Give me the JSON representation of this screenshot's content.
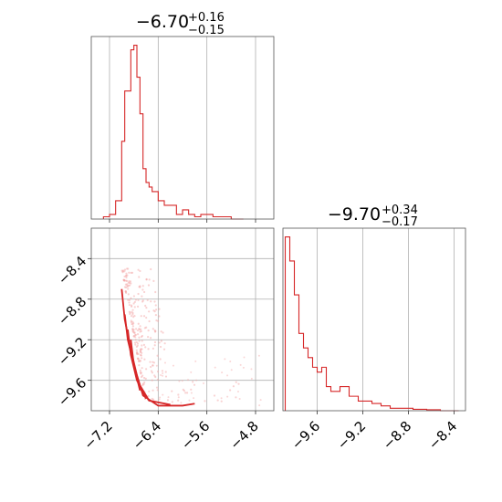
{
  "colors": {
    "series": "#d62728",
    "scatter": "#f4a6a6",
    "frame": "#555555",
    "grid": "#b0b0b0"
  },
  "chart_data": [
    {
      "panel": "marginal-param1",
      "type": "histogram",
      "title_main": "−6.70",
      "title_plus": "+0.16",
      "title_minus": "−0.15",
      "x_range": [
        -7.5,
        -4.5
      ],
      "bins_x": [
        -7.3,
        -7.2,
        -7.1,
        -7.05,
        -7.0,
        -6.95,
        -6.9,
        -6.85,
        -6.8,
        -6.75,
        -6.7,
        -6.65,
        -6.6,
        -6.55,
        -6.5,
        -6.4,
        -6.3,
        -6.2,
        -6.1,
        -6.0,
        -5.9,
        -5.8,
        -5.7,
        -5.6,
        -5.5,
        -5.4,
        -5.3,
        -5.2,
        -5.1,
        -5.0
      ],
      "counts": [
        0.5,
        1,
        4,
        4,
        17,
        28,
        28,
        37,
        38,
        31,
        23,
        11,
        8,
        7,
        6,
        4,
        3,
        3,
        1,
        2,
        1,
        0.5,
        1,
        1,
        0.5,
        0.5,
        0.5,
        0,
        0
      ]
    },
    {
      "panel": "marginal-param2",
      "type": "histogram",
      "title_main": "−9.70",
      "title_plus": "+0.34",
      "title_minus": "−0.17",
      "x_range": [
        -9.9,
        -8.3
      ],
      "x_ticks": [
        -9.6,
        -9.2,
        -8.8,
        -8.4
      ],
      "x_tick_labels": [
        "−9.6",
        "−9.2",
        "−8.8",
        "−8.4"
      ],
      "bins_x": [
        -9.88,
        -9.84,
        -9.8,
        -9.76,
        -9.72,
        -9.68,
        -9.64,
        -9.6,
        -9.56,
        -9.52,
        -9.48,
        -9.44,
        -9.4,
        -9.36,
        -9.32,
        -9.28,
        -9.24,
        -9.2,
        -9.16,
        -9.12,
        -9.08,
        -9.04,
        -9.0,
        -8.96,
        -8.92,
        -8.88,
        -8.84,
        -8.8,
        -8.76,
        -8.72,
        -8.68,
        -8.64,
        -8.6,
        -8.56,
        -8.52,
        -8.48,
        -8.44,
        -8.4,
        -8.36
      ],
      "counts": [
        36,
        31,
        24,
        16,
        13,
        11,
        9,
        8,
        9,
        5,
        4,
        4,
        5,
        5,
        3,
        3,
        2,
        2,
        2,
        1.5,
        1.5,
        1,
        1,
        0.5,
        0.5,
        0.5,
        0.5,
        0.5,
        0.3,
        0.3,
        0.3,
        0.2,
        0.2,
        0.2,
        0,
        0,
        0,
        0
      ]
    },
    {
      "panel": "joint-param1-param2",
      "type": "scatter-contour",
      "x_range": [
        -7.5,
        -4.5
      ],
      "y_range": [
        -9.9,
        -8.1
      ],
      "x_ticks": [
        -7.2,
        -6.4,
        -5.6,
        -4.8
      ],
      "x_tick_labels": [
        "−7.2",
        "−6.4",
        "−5.6",
        "−4.8"
      ],
      "y_ticks": [
        -8.4,
        -8.8,
        -9.2,
        -9.6
      ],
      "y_tick_labels": [
        "−8.4",
        "−8.8",
        "−9.2",
        "−9.6"
      ],
      "contours": [
        [
          [
            -7.0,
            -8.7
          ],
          [
            -6.95,
            -9.0
          ],
          [
            -6.85,
            -9.3
          ],
          [
            -6.75,
            -9.55
          ],
          [
            -6.65,
            -9.75
          ],
          [
            -6.4,
            -9.85
          ],
          [
            -6.0,
            -9.85
          ],
          [
            -5.8,
            -9.83
          ]
        ],
        [
          [
            -6.95,
            -8.95
          ],
          [
            -6.9,
            -9.2
          ],
          [
            -6.8,
            -9.45
          ],
          [
            -6.7,
            -9.65
          ],
          [
            -6.55,
            -9.8
          ],
          [
            -6.2,
            -9.84
          ]
        ],
        [
          [
            -6.9,
            -9.1
          ],
          [
            -6.85,
            -9.35
          ],
          [
            -6.75,
            -9.6
          ],
          [
            -6.6,
            -9.78
          ]
        ],
        [
          [
            -6.85,
            -9.2
          ],
          [
            -6.8,
            -9.45
          ],
          [
            -6.7,
            -9.7
          ]
        ]
      ]
    }
  ]
}
